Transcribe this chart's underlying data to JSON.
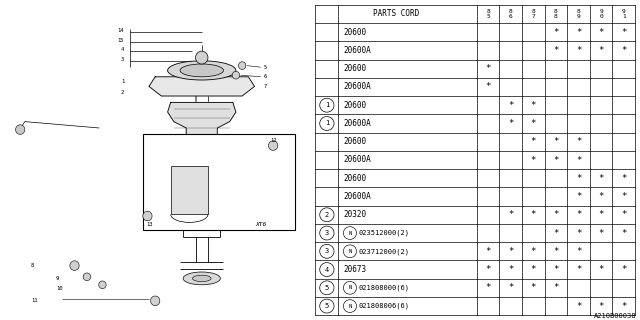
{
  "watermark": "A210B00038",
  "table": {
    "header_col": "PARTS CORD",
    "year_cols": [
      "85",
      "86",
      "87",
      "88",
      "89",
      "90",
      "91"
    ],
    "rows": [
      {
        "label": "20600",
        "ref": "",
        "marks": [
          0,
          0,
          0,
          1,
          1,
          1,
          1
        ]
      },
      {
        "label": "20600A",
        "ref": "",
        "marks": [
          0,
          0,
          0,
          1,
          1,
          1,
          1
        ]
      },
      {
        "label": "20600",
        "ref": "",
        "marks": [
          1,
          0,
          0,
          0,
          0,
          0,
          0
        ]
      },
      {
        "label": "20600A",
        "ref": "",
        "marks": [
          1,
          0,
          0,
          0,
          0,
          0,
          0
        ]
      },
      {
        "label": "20600",
        "ref": "1",
        "marks": [
          0,
          1,
          1,
          0,
          0,
          0,
          0
        ]
      },
      {
        "label": "20600A",
        "ref": "1",
        "marks": [
          0,
          1,
          1,
          0,
          0,
          0,
          0
        ]
      },
      {
        "label": "20600",
        "ref": "",
        "marks": [
          0,
          0,
          1,
          1,
          1,
          0,
          0
        ]
      },
      {
        "label": "20600A",
        "ref": "",
        "marks": [
          0,
          0,
          1,
          1,
          1,
          0,
          0
        ]
      },
      {
        "label": "20600",
        "ref": "",
        "marks": [
          0,
          0,
          0,
          0,
          1,
          1,
          1
        ]
      },
      {
        "label": "20600A",
        "ref": "",
        "marks": [
          0,
          0,
          0,
          0,
          1,
          1,
          1
        ]
      },
      {
        "label": "20320",
        "ref": "2",
        "marks": [
          0,
          1,
          1,
          1,
          1,
          1,
          1
        ]
      },
      {
        "label": "N023512000(2)",
        "ref": "3",
        "marks": [
          0,
          0,
          0,
          1,
          1,
          1,
          1
        ]
      },
      {
        "label": "N023712000(2)",
        "ref": "3",
        "marks": [
          1,
          1,
          1,
          1,
          1,
          0,
          0
        ]
      },
      {
        "label": "20673",
        "ref": "4",
        "marks": [
          1,
          1,
          1,
          1,
          1,
          1,
          1
        ]
      },
      {
        "label": "N021808000(6)",
        "ref": "5",
        "marks": [
          1,
          1,
          1,
          1,
          0,
          0,
          0
        ]
      },
      {
        "label": "N021808006(6)",
        "ref": "5",
        "marks": [
          0,
          0,
          0,
          0,
          1,
          1,
          1
        ]
      }
    ]
  }
}
